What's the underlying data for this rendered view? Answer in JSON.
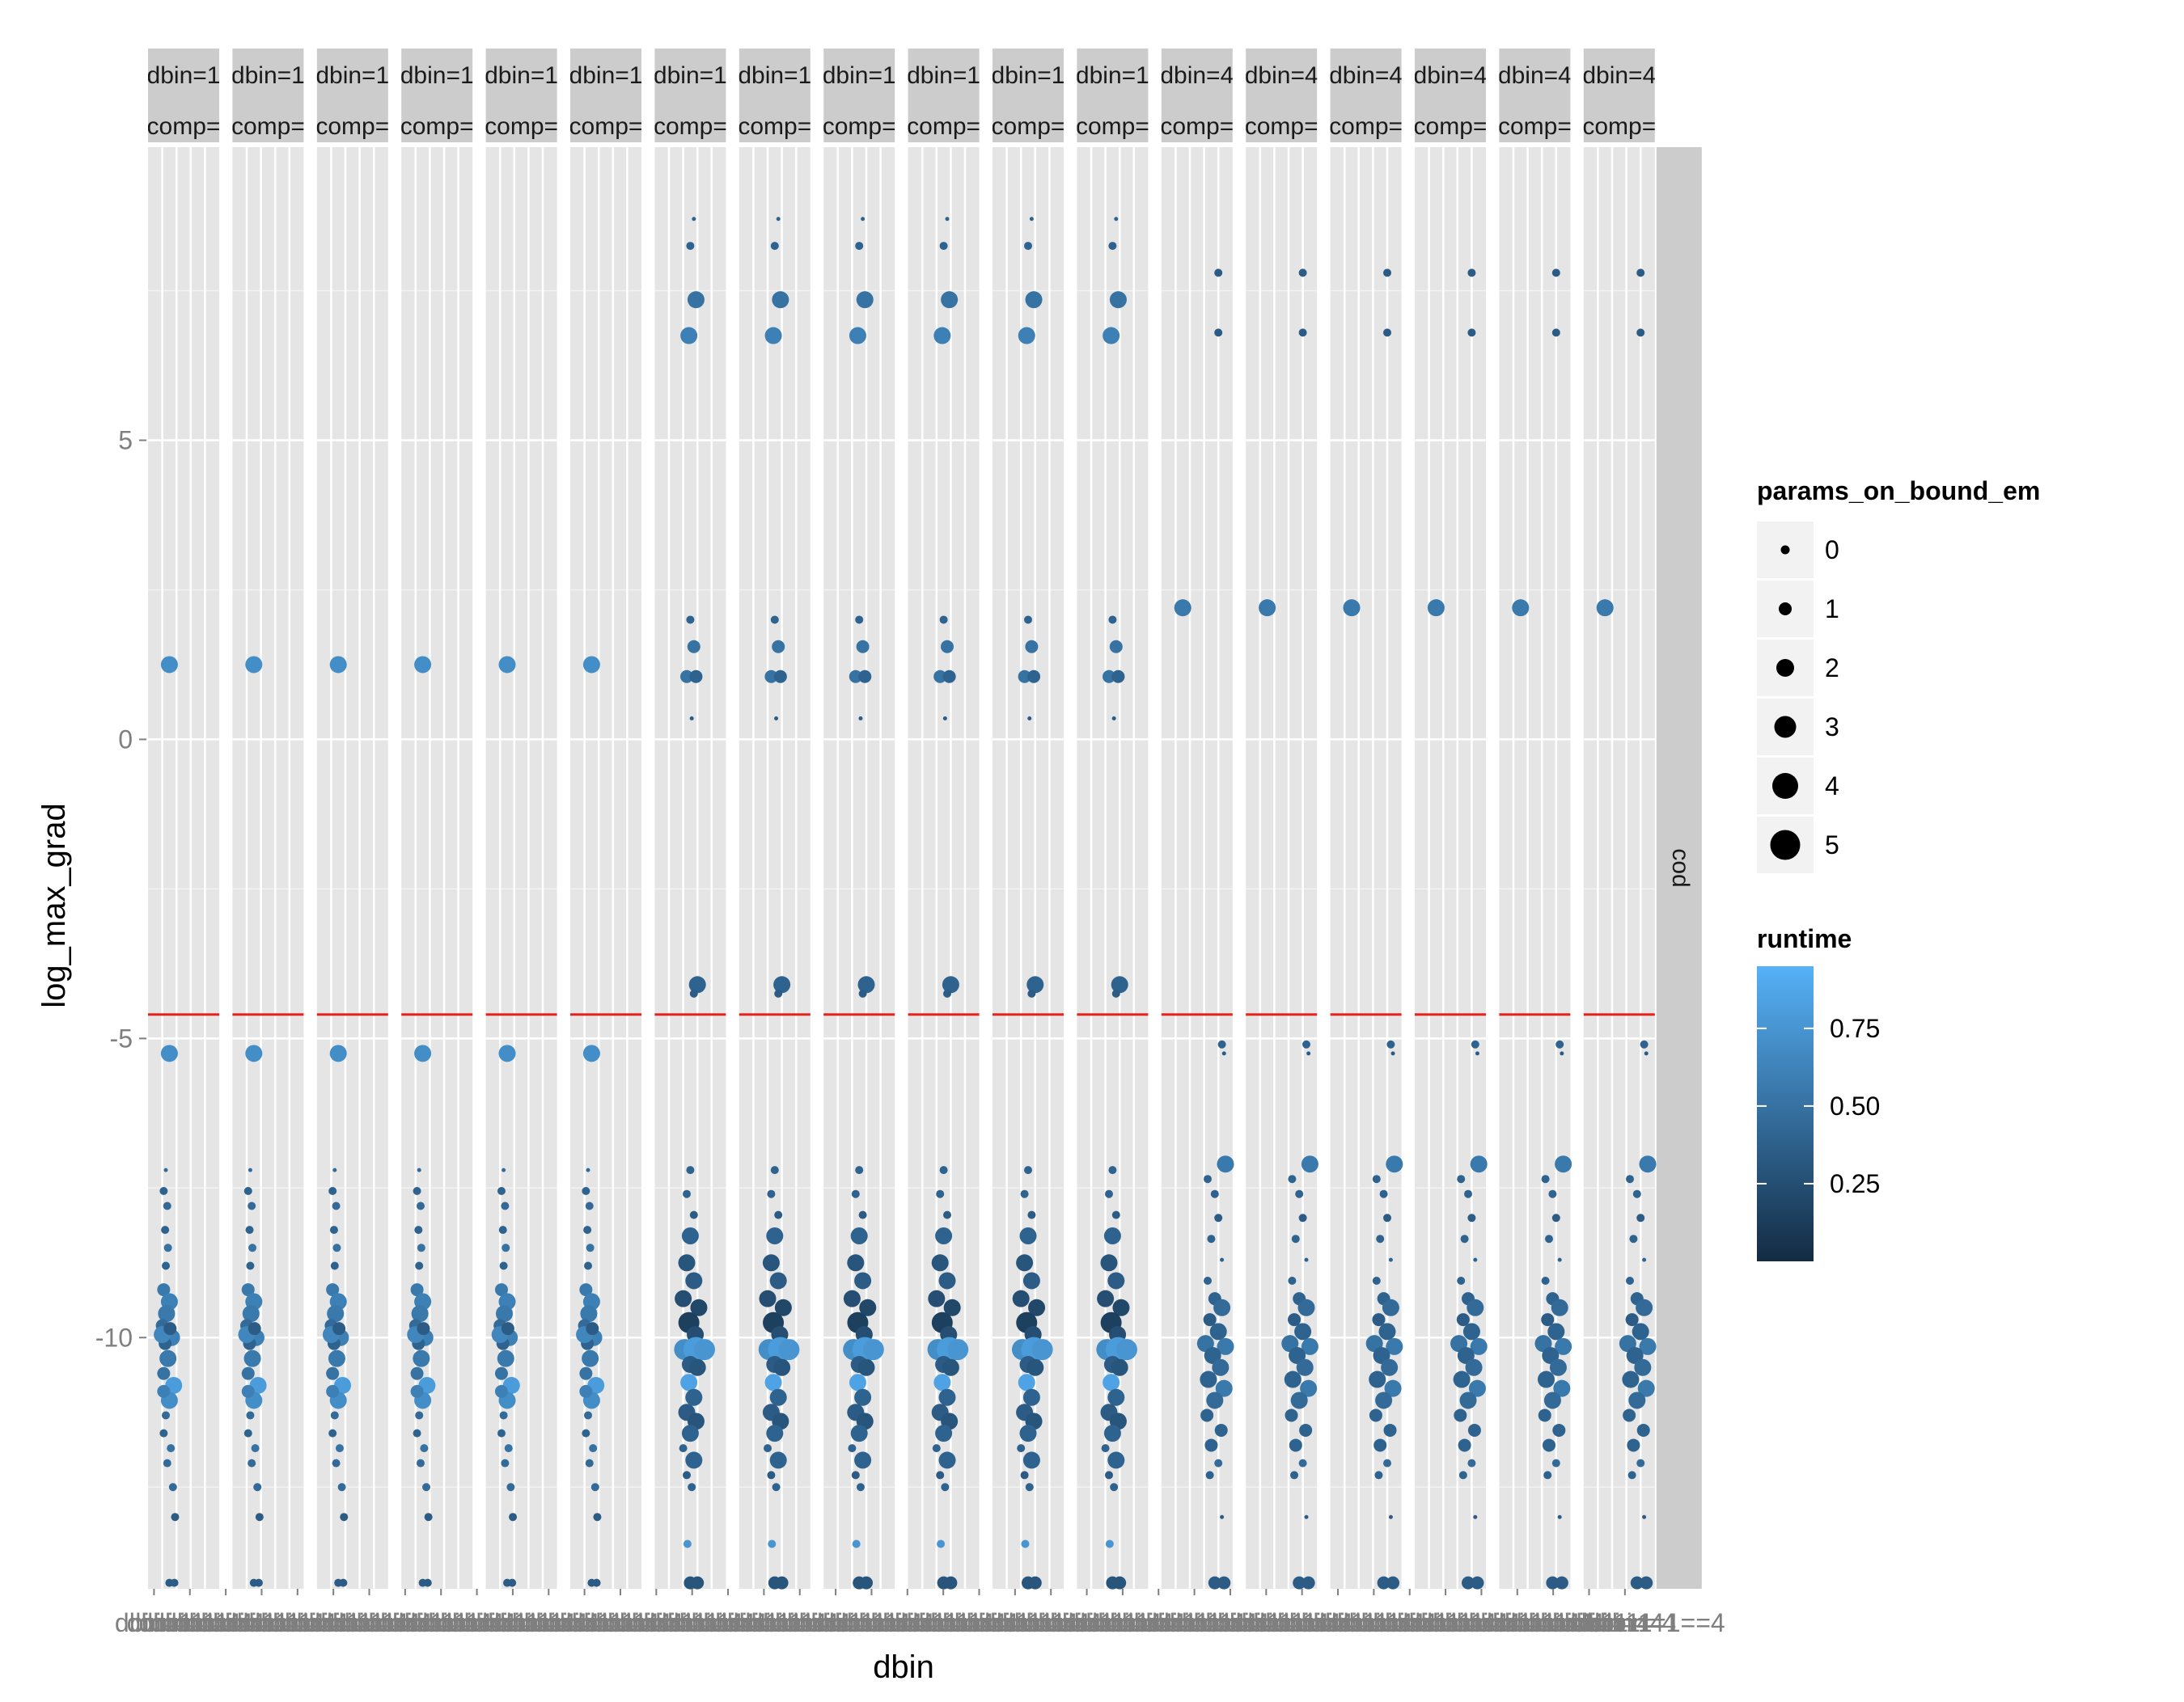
{
  "chart_data": {
    "type": "scatter",
    "xlabel": "dbin",
    "ylabel": "log_max_grad",
    "ylim": [
      -14.2,
      9.9
    ],
    "yticks": [
      -10,
      -5,
      0,
      5
    ],
    "ytick_labels": [
      "-10",
      "-5",
      "0",
      "5"
    ],
    "grid": true,
    "facet_column_labels": [
      [
        "dbin=1",
        "comp="
      ],
      [
        "dbin=1",
        "comp="
      ],
      [
        "dbin=1",
        "comp="
      ],
      [
        "dbin=1",
        "comp="
      ],
      [
        "dbin=1",
        "comp="
      ],
      [
        "dbin=1",
        "comp="
      ],
      [
        "dbin=1",
        "comp="
      ],
      [
        "dbin=1",
        "comp="
      ],
      [
        "dbin=1",
        "comp="
      ],
      [
        "dbin=1",
        "comp="
      ],
      [
        "dbin=1",
        "comp="
      ],
      [
        "dbin=1",
        "comp="
      ],
      [
        "dbin=4",
        "comp="
      ],
      [
        "dbin=4",
        "comp="
      ],
      [
        "dbin=4",
        "comp="
      ],
      [
        "dbin=4",
        "comp="
      ],
      [
        "dbin=4",
        "comp="
      ],
      [
        "dbin=4",
        "comp="
      ]
    ],
    "facet_row_label": "cod",
    "x_tick_labels": [
      "dbin=1",
      "dbin=1",
      "dbin=1",
      "dbin=1",
      "dbin=4",
      "dbin=4",
      "dbin=4",
      "dbin=1",
      "dbin=1",
      "dbin=1",
      "dbin=1",
      "dbin=4",
      "dbin=4",
      "dbin=4",
      "dbin=1",
      "dbin=1",
      "dbin=1",
      "dbin=1",
      "dbin=4",
      "dbin=4",
      "dbin=4",
      "dbin=1",
      "dbin=1",
      "dbin=1",
      "dbin=1",
      "dbin=4",
      "dbin=4",
      "dbin=4",
      "dbin=1",
      "dbin=1",
      "dbin=1",
      "dbin=1",
      "dbin=4",
      "dbin=4",
      "dbin=4",
      "dbin=1",
      "dbin=1",
      "dbin=1",
      "dbin=1",
      "dbin=4",
      "dbin=4",
      "dbin=4",
      "dbin=1",
      "dbin=1",
      "dbin=1",
      "dbin=1",
      "dbin=4",
      "dbin=4",
      "dbin=4",
      "dbin=1",
      "dbin=1",
      "dbin=1",
      "dbin=1",
      "dbin=4",
      "dbin=4",
      "dbin=4",
      "dbin=1",
      "dbin=1",
      "dbin=1",
      "dbin=1",
      "dbin=4",
      "dbin=4",
      "dbin=4",
      "dbin=1",
      "dbin=1",
      "dbin=1",
      "dbin=1",
      "dbin=4",
      "dbin=4",
      "dbin=4",
      "dbin=1",
      "dbin=1",
      "dbin=1",
      "dbin=1",
      "dbin=4",
      "dbin=4",
      "dbin=4",
      "dbin=1",
      "dbin=1",
      "dbin=1",
      "dbin=1",
      "dbin=4",
      "dbin=4",
      "dbin=4",
      "dbin=1",
      "dbin=1",
      "dbin=1",
      "dbin=1",
      "dbin=4",
      "dbin=4",
      "dbin=4",
      "dbin=1",
      "dbin=1",
      "dbin=1",
      "dbin=1",
      "dbin=4",
      "dbin=4",
      "dbin=4",
      "dbin=1",
      "dbin=1",
      "dbin=1",
      "dbin=1",
      "dbin=4",
      "dbin=4",
      "dbin=4",
      "dbin=1",
      "dbin=1",
      "dbin=1",
      "dbin=1",
      "dbin=4",
      "dbin=4",
      "dbin=4",
      "dbin=1",
      "dbin=1",
      "dbin=1",
      "dbin=1",
      "dbin=4",
      "dbin=4",
      "dbin=4",
      "dbin=1",
      "dbin=1",
      "dbin=1",
      "dbin=1",
      "dbin=4",
      "dbin=4",
      "dbin=4=1==4"
    ],
    "reference_line": {
      "y": -4.6,
      "color": "#e8211c"
    },
    "size_legend": {
      "title": "params_on_bound_em",
      "values": [
        0,
        1,
        2,
        3,
        4,
        5
      ],
      "labels": [
        "0",
        "1",
        "2",
        "3",
        "4",
        "5"
      ]
    },
    "color_legend": {
      "title": "runtime",
      "ticks": [
        0.25,
        0.5,
        0.75
      ],
      "tick_labels": [
        "0.25",
        "0.50",
        "0.75"
      ],
      "range": [
        0.0,
        0.95
      ],
      "low_color": "#132b43",
      "high_color": "#56b1f7"
    },
    "groups": {
      "A": [
        {
          "dx": 0.3,
          "y": 1.25,
          "size": 3,
          "runtime": 0.7
        },
        {
          "dx": 0.3,
          "y": -5.25,
          "size": 3,
          "runtime": 0.7
        },
        {
          "dx": 0.25,
          "y": -7.2,
          "size": 0,
          "runtime": 0.45
        },
        {
          "dx": 0.22,
          "y": -7.55,
          "size": 1,
          "runtime": 0.4
        },
        {
          "dx": 0.27,
          "y": -7.8,
          "size": 1,
          "runtime": 0.45
        },
        {
          "dx": 0.24,
          "y": -8.2,
          "size": 1,
          "runtime": 0.4
        },
        {
          "dx": 0.28,
          "y": -8.5,
          "size": 1,
          "runtime": 0.5
        },
        {
          "dx": 0.25,
          "y": -8.8,
          "size": 1,
          "runtime": 0.4
        },
        {
          "dx": 0.22,
          "y": -9.2,
          "size": 2,
          "runtime": 0.55
        },
        {
          "dx": 0.3,
          "y": -9.4,
          "size": 3,
          "runtime": 0.6
        },
        {
          "dx": 0.26,
          "y": -9.6,
          "size": 3,
          "runtime": 0.55
        },
        {
          "dx": 0.2,
          "y": -9.8,
          "size": 2,
          "runtime": 0.45
        },
        {
          "dx": 0.33,
          "y": -10.0,
          "size": 3,
          "runtime": 0.6
        },
        {
          "dx": 0.24,
          "y": -10.1,
          "size": 2,
          "runtime": 0.4
        },
        {
          "dx": 0.28,
          "y": -10.35,
          "size": 3,
          "runtime": 0.55
        },
        {
          "dx": 0.22,
          "y": -10.6,
          "size": 2,
          "runtime": 0.5
        },
        {
          "dx": 0.36,
          "y": -10.8,
          "size": 3,
          "runtime": 0.8
        },
        {
          "dx": 0.3,
          "y": -11.05,
          "size": 3,
          "runtime": 0.7
        },
        {
          "dx": 0.25,
          "y": -11.3,
          "size": 1,
          "runtime": 0.45
        },
        {
          "dx": 0.22,
          "y": -11.6,
          "size": 1,
          "runtime": 0.4
        },
        {
          "dx": 0.32,
          "y": -11.85,
          "size": 1,
          "runtime": 0.5
        },
        {
          "dx": 0.27,
          "y": -12.1,
          "size": 1,
          "runtime": 0.45
        },
        {
          "dx": 0.35,
          "y": -12.5,
          "size": 1,
          "runtime": 0.45
        },
        {
          "dx": 0.38,
          "y": -13.0,
          "size": 1,
          "runtime": 0.35
        },
        {
          "dx": 0.2,
          "y": -9.95,
          "size": 3,
          "runtime": 0.65
        },
        {
          "dx": 0.31,
          "y": -9.85,
          "size": 2,
          "runtime": 0.35
        },
        {
          "dx": 0.22,
          "y": -10.9,
          "size": 2,
          "runtime": 0.6
        },
        {
          "dx": 0.3,
          "y": -14.1,
          "size": 1,
          "runtime": 0.35
        },
        {
          "dx": 0.37,
          "y": -14.1,
          "size": 1,
          "runtime": 0.35
        }
      ],
      "B": [
        {
          "dx": 0.55,
          "y": 8.7,
          "size": 0,
          "runtime": 0.4
        },
        {
          "dx": 0.5,
          "y": 8.25,
          "size": 1,
          "runtime": 0.4
        },
        {
          "dx": 0.58,
          "y": 7.35,
          "size": 3,
          "runtime": 0.5
        },
        {
          "dx": 0.48,
          "y": 6.75,
          "size": 3,
          "runtime": 0.6
        },
        {
          "dx": 0.5,
          "y": 2.0,
          "size": 1,
          "runtime": 0.4
        },
        {
          "dx": 0.55,
          "y": 1.55,
          "size": 2,
          "runtime": 0.5
        },
        {
          "dx": 0.45,
          "y": 1.05,
          "size": 2,
          "runtime": 0.5
        },
        {
          "dx": 0.58,
          "y": 1.05,
          "size": 2,
          "runtime": 0.4
        },
        {
          "dx": 0.52,
          "y": 0.35,
          "size": 0,
          "runtime": 0.35
        },
        {
          "dx": 0.6,
          "y": -4.1,
          "size": 3,
          "runtime": 0.4
        },
        {
          "dx": 0.55,
          "y": -4.25,
          "size": 1,
          "runtime": 0.35
        },
        {
          "dx": 0.5,
          "y": -7.2,
          "size": 1,
          "runtime": 0.4
        },
        {
          "dx": 0.45,
          "y": -7.6,
          "size": 1,
          "runtime": 0.4
        },
        {
          "dx": 0.55,
          "y": -7.95,
          "size": 1,
          "runtime": 0.35
        },
        {
          "dx": 0.5,
          "y": -8.3,
          "size": 3,
          "runtime": 0.4
        },
        {
          "dx": 0.45,
          "y": -8.75,
          "size": 3,
          "runtime": 0.3
        },
        {
          "dx": 0.55,
          "y": -9.05,
          "size": 3,
          "runtime": 0.35
        },
        {
          "dx": 0.4,
          "y": -9.35,
          "size": 3,
          "runtime": 0.25
        },
        {
          "dx": 0.62,
          "y": -9.5,
          "size": 3,
          "runtime": 0.2
        },
        {
          "dx": 0.48,
          "y": -9.75,
          "size": 4,
          "runtime": 0.15
        },
        {
          "dx": 0.57,
          "y": -9.95,
          "size": 3,
          "runtime": 0.25
        },
        {
          "dx": 0.42,
          "y": -10.2,
          "size": 4,
          "runtime": 0.7
        },
        {
          "dx": 0.58,
          "y": -10.2,
          "size": 5,
          "runtime": 0.8
        },
        {
          "dx": 0.7,
          "y": -10.2,
          "size": 4,
          "runtime": 0.75
        },
        {
          "dx": 0.5,
          "y": -10.45,
          "size": 3,
          "runtime": 0.35
        },
        {
          "dx": 0.6,
          "y": -10.5,
          "size": 3,
          "runtime": 0.3
        },
        {
          "dx": 0.48,
          "y": -10.75,
          "size": 3,
          "runtime": 0.85
        },
        {
          "dx": 0.55,
          "y": -11.0,
          "size": 3,
          "runtime": 0.4
        },
        {
          "dx": 0.45,
          "y": -11.25,
          "size": 3,
          "runtime": 0.35
        },
        {
          "dx": 0.58,
          "y": -11.4,
          "size": 3,
          "runtime": 0.3
        },
        {
          "dx": 0.5,
          "y": -11.6,
          "size": 3,
          "runtime": 0.4
        },
        {
          "dx": 0.4,
          "y": -11.85,
          "size": 1,
          "runtime": 0.4
        },
        {
          "dx": 0.55,
          "y": -12.05,
          "size": 3,
          "runtime": 0.4
        },
        {
          "dx": 0.45,
          "y": -12.3,
          "size": 1,
          "runtime": 0.35
        },
        {
          "dx": 0.52,
          "y": -12.5,
          "size": 1,
          "runtime": 0.4
        },
        {
          "dx": 0.46,
          "y": -13.45,
          "size": 1,
          "runtime": 0.75
        },
        {
          "dx": 0.5,
          "y": -14.1,
          "size": 2,
          "runtime": 0.3
        },
        {
          "dx": 0.6,
          "y": -14.1,
          "size": 2,
          "runtime": 0.3
        }
      ],
      "C": [
        {
          "dx": 0.8,
          "y": 7.8,
          "size": 1,
          "runtime": 0.35
        },
        {
          "dx": 0.8,
          "y": 6.8,
          "size": 1,
          "runtime": 0.35
        },
        {
          "dx": 0.3,
          "y": 2.2,
          "size": 3,
          "runtime": 0.55
        },
        {
          "dx": 0.85,
          "y": -5.1,
          "size": 1,
          "runtime": 0.4
        },
        {
          "dx": 0.88,
          "y": -5.25,
          "size": 0,
          "runtime": 0.35
        },
        {
          "dx": 0.9,
          "y": -7.1,
          "size": 3,
          "runtime": 0.55
        },
        {
          "dx": 0.65,
          "y": -7.35,
          "size": 1,
          "runtime": 0.4
        },
        {
          "dx": 0.75,
          "y": -7.6,
          "size": 1,
          "runtime": 0.4
        },
        {
          "dx": 0.8,
          "y": -8.0,
          "size": 1,
          "runtime": 0.35
        },
        {
          "dx": 0.7,
          "y": -8.35,
          "size": 1,
          "runtime": 0.4
        },
        {
          "dx": 0.85,
          "y": -8.7,
          "size": 0,
          "runtime": 0.4
        },
        {
          "dx": 0.65,
          "y": -9.05,
          "size": 1,
          "runtime": 0.4
        },
        {
          "dx": 0.75,
          "y": -9.35,
          "size": 2,
          "runtime": 0.4
        },
        {
          "dx": 0.85,
          "y": -9.5,
          "size": 3,
          "runtime": 0.45
        },
        {
          "dx": 0.68,
          "y": -9.7,
          "size": 2,
          "runtime": 0.35
        },
        {
          "dx": 0.8,
          "y": -9.9,
          "size": 3,
          "runtime": 0.4
        },
        {
          "dx": 0.62,
          "y": -10.1,
          "size": 3,
          "runtime": 0.5
        },
        {
          "dx": 0.9,
          "y": -10.15,
          "size": 3,
          "runtime": 0.55
        },
        {
          "dx": 0.72,
          "y": -10.3,
          "size": 3,
          "runtime": 0.4
        },
        {
          "dx": 0.83,
          "y": -10.5,
          "size": 3,
          "runtime": 0.45
        },
        {
          "dx": 0.66,
          "y": -10.7,
          "size": 3,
          "runtime": 0.4
        },
        {
          "dx": 0.88,
          "y": -10.85,
          "size": 3,
          "runtime": 0.55
        },
        {
          "dx": 0.75,
          "y": -11.05,
          "size": 3,
          "runtime": 0.45
        },
        {
          "dx": 0.64,
          "y": -11.3,
          "size": 2,
          "runtime": 0.4
        },
        {
          "dx": 0.84,
          "y": -11.55,
          "size": 2,
          "runtime": 0.4
        },
        {
          "dx": 0.7,
          "y": -11.8,
          "size": 2,
          "runtime": 0.4
        },
        {
          "dx": 0.8,
          "y": -12.1,
          "size": 1,
          "runtime": 0.45
        },
        {
          "dx": 0.68,
          "y": -12.3,
          "size": 1,
          "runtime": 0.4
        },
        {
          "dx": 0.85,
          "y": -13.0,
          "size": 0,
          "runtime": 0.35
        },
        {
          "dx": 0.75,
          "y": -14.1,
          "size": 2,
          "runtime": 0.35
        },
        {
          "dx": 0.88,
          "y": -14.1,
          "size": 2,
          "runtime": 0.35
        }
      ]
    },
    "panel_groups": [
      "A",
      "A",
      "A",
      "A",
      "A",
      "A",
      "B",
      "B",
      "B",
      "B",
      "B",
      "B",
      "C",
      "C",
      "C",
      "C",
      "C",
      "C"
    ]
  }
}
